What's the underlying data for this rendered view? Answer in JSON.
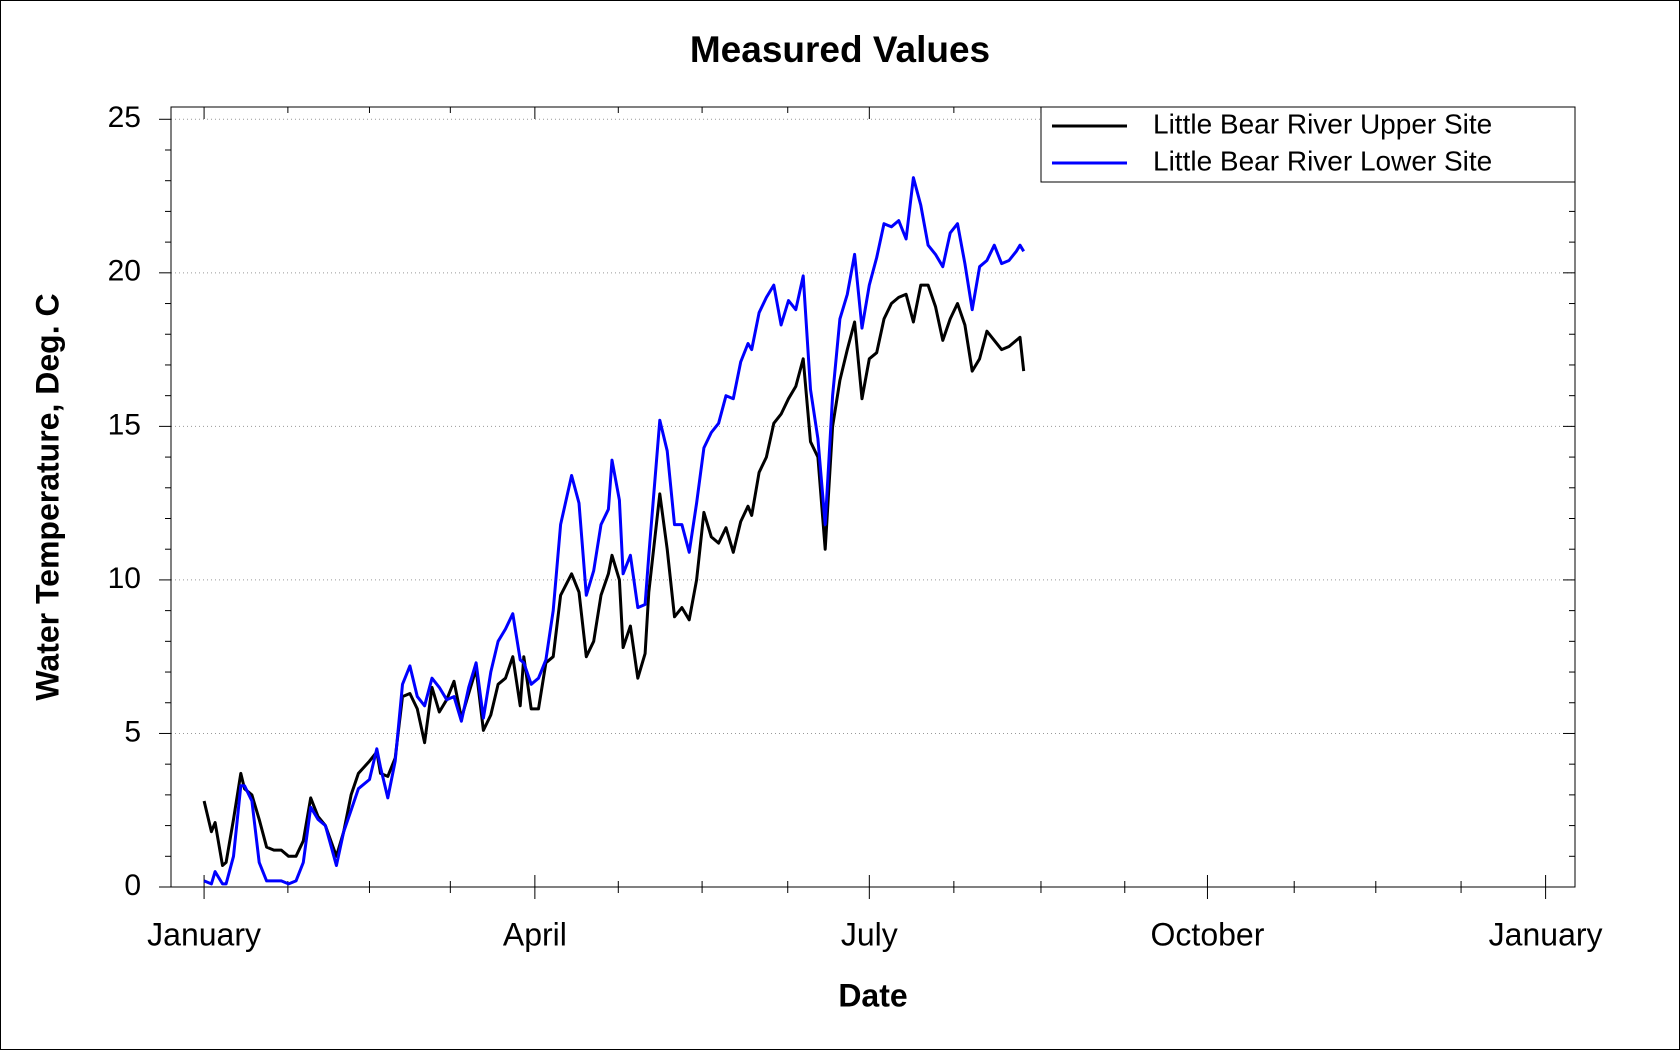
{
  "chart_data": {
    "type": "line",
    "title": "Measured Values",
    "x_label": "Date",
    "y_label": "Water Temperature, Deg. C",
    "x": [
      0,
      2,
      3,
      5,
      6,
      8,
      10,
      11,
      13,
      15,
      17,
      19,
      21,
      23,
      25,
      27,
      29,
      31,
      33,
      36,
      38,
      40,
      42,
      45,
      47,
      48,
      50,
      52,
      54,
      56,
      58,
      60,
      62,
      64,
      66,
      68,
      70,
      72,
      74,
      76,
      78,
      80,
      82,
      84,
      86,
      87,
      89,
      91,
      93,
      95,
      97,
      100,
      102,
      104,
      106,
      108,
      110,
      111,
      113,
      114,
      116,
      118,
      120,
      121,
      124,
      126,
      128,
      130,
      132,
      134,
      136,
      138,
      140,
      142,
      144,
      146,
      148,
      149,
      151,
      153,
      155,
      157,
      159,
      161,
      163,
      165,
      167,
      169,
      171,
      173,
      175,
      177,
      179,
      181,
      183,
      185,
      187,
      189,
      191,
      193,
      195,
      197,
      199,
      201,
      203,
      205,
      207,
      209,
      211,
      213,
      215,
      217,
      219,
      221,
      222,
      223
    ],
    "series": [
      {
        "name": "Little Bear River Upper Site",
        "color": "#000000",
        "values": [
          2.8,
          1.8,
          2.1,
          0.7,
          0.8,
          2.2,
          3.7,
          3.2,
          3.0,
          2.2,
          1.3,
          1.2,
          1.2,
          1.0,
          1.0,
          1.5,
          2.9,
          2.3,
          2.0,
          1.0,
          1.8,
          3.0,
          3.7,
          4.1,
          4.4,
          3.7,
          3.6,
          4.2,
          6.2,
          6.3,
          5.8,
          4.7,
          6.5,
          5.7,
          6.1,
          6.7,
          5.5,
          6.3,
          7.1,
          5.1,
          5.6,
          6.6,
          6.8,
          7.5,
          5.9,
          7.5,
          5.8,
          5.8,
          7.3,
          7.5,
          9.5,
          10.2,
          9.6,
          7.5,
          8.0,
          9.5,
          10.2,
          10.8,
          10.0,
          7.8,
          8.5,
          6.8,
          7.6,
          9.6,
          12.8,
          11.0,
          8.8,
          9.1,
          8.7,
          10.0,
          12.2,
          11.4,
          11.2,
          11.7,
          10.9,
          11.9,
          12.4,
          12.1,
          13.5,
          14.0,
          15.1,
          15.4,
          15.9,
          16.3,
          17.2,
          14.5,
          14.0,
          11.0,
          15.0,
          16.5,
          17.5,
          18.4,
          15.9,
          17.2,
          17.4,
          18.5,
          19.0,
          19.2,
          19.3,
          18.4,
          19.6,
          19.6,
          18.9,
          17.8,
          18.5,
          19.0,
          18.3,
          16.8,
          17.2,
          18.1,
          17.8,
          17.5,
          17.6,
          17.8,
          17.9,
          16.8
        ]
      },
      {
        "name": "Little Bear River Lower Site",
        "color": "#0000ff",
        "values": [
          0.2,
          0.1,
          0.5,
          0.1,
          0.1,
          1.0,
          3.3,
          3.3,
          2.8,
          0.8,
          0.2,
          0.2,
          0.2,
          0.1,
          0.2,
          0.8,
          2.6,
          2.2,
          2.0,
          0.7,
          1.8,
          2.5,
          3.2,
          3.5,
          4.5,
          3.9,
          2.9,
          4.1,
          6.6,
          7.2,
          6.2,
          5.9,
          6.8,
          6.5,
          6.1,
          6.2,
          5.4,
          6.5,
          7.3,
          5.5,
          7.0,
          8.0,
          8.4,
          8.9,
          7.4,
          7.3,
          6.6,
          6.8,
          7.4,
          9.0,
          11.8,
          13.4,
          12.5,
          9.5,
          10.3,
          11.8,
          12.3,
          13.9,
          12.6,
          10.2,
          10.8,
          9.1,
          9.2,
          10.8,
          15.2,
          14.2,
          11.8,
          11.8,
          10.9,
          12.5,
          14.3,
          14.8,
          15.1,
          16.0,
          15.9,
          17.1,
          17.7,
          17.5,
          18.7,
          19.2,
          19.6,
          18.3,
          19.1,
          18.8,
          19.9,
          16.2,
          14.6,
          11.8,
          16.0,
          18.5,
          19.3,
          20.6,
          18.2,
          19.6,
          20.5,
          21.6,
          21.5,
          21.7,
          21.1,
          23.1,
          22.2,
          20.9,
          20.6,
          20.2,
          21.3,
          21.6,
          20.3,
          18.8,
          20.2,
          20.4,
          20.9,
          20.3,
          20.4,
          20.7,
          20.9,
          20.7
        ]
      }
    ],
    "xlim": [
      -9,
      373
    ],
    "xticks": [
      {
        "value": 0,
        "label": "January"
      },
      {
        "value": 90,
        "label": "April"
      },
      {
        "value": 181,
        "label": "July"
      },
      {
        "value": 273,
        "label": "October"
      },
      {
        "value": 365,
        "label": "January"
      }
    ],
    "x_minor_ticks": [
      22.8,
      45,
      67,
      112.7,
      135.5,
      158.8,
      204,
      227.7,
      250.5,
      296.6,
      318.8,
      342
    ],
    "ylim": [
      0,
      25.4
    ],
    "yticks": [
      0,
      5,
      10,
      15,
      20,
      25
    ],
    "y_minor_ticks": [
      1,
      2,
      3,
      4,
      6,
      7,
      8,
      9,
      11,
      12,
      13,
      14,
      16,
      17,
      18,
      19,
      21,
      22,
      23,
      24
    ],
    "grid": true,
    "legend_position": "upper-right"
  }
}
